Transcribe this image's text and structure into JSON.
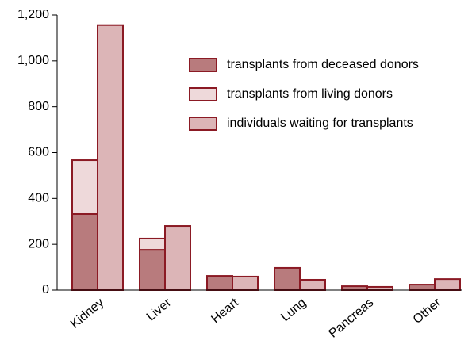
{
  "chart_data": {
    "type": "bar",
    "categories": [
      "Kidney",
      "Liver",
      "Heart",
      "Lung",
      "Pancreas",
      "Other"
    ],
    "series": [
      {
        "name": "transplants from deceased donors",
        "color": "#b87b7d",
        "values": [
          332,
          176,
          62,
          97,
          17,
          24
        ]
      },
      {
        "name": "transplants from living donors",
        "color": "#eed9da",
        "values": [
          235,
          49,
          0,
          0,
          0,
          0
        ]
      },
      {
        "name": "individuals waiting for transplants",
        "color": "#dcb5b7",
        "values": [
          1156,
          280,
          59,
          45,
          14,
          48
        ]
      }
    ],
    "edge_color": "#8b1a24",
    "ylim": [
      0,
      1200
    ],
    "yticks": [
      0,
      200,
      400,
      600,
      800,
      {
        "value": 1000,
        "label": "1,000"
      },
      {
        "value": 1200,
        "label": "1,200"
      }
    ],
    "grid": false,
    "legend": "upper right"
  }
}
